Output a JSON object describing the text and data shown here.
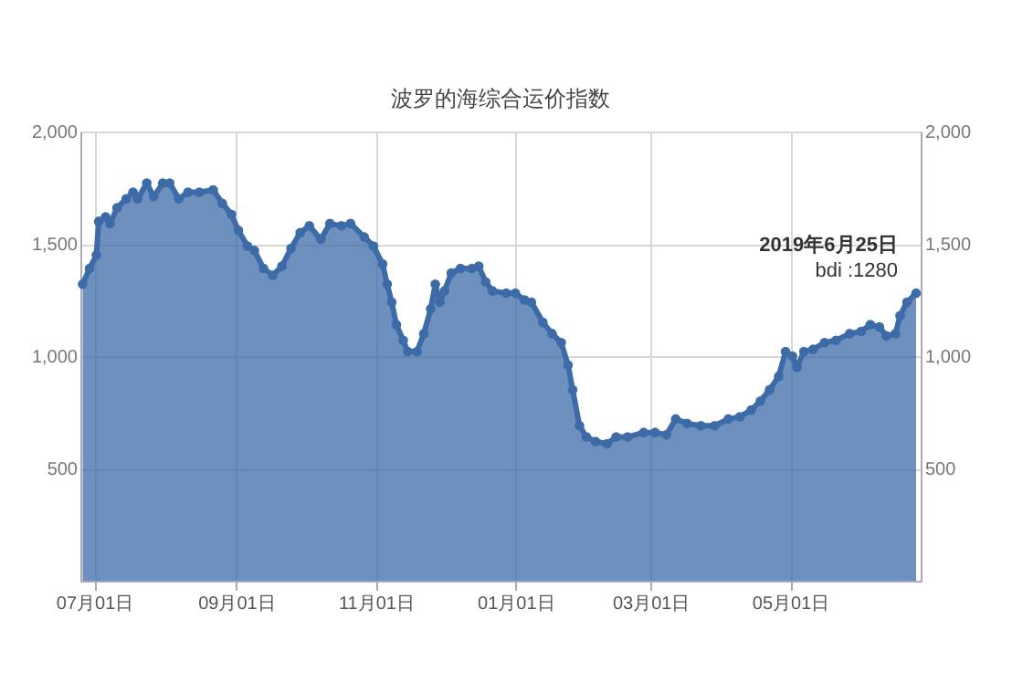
{
  "chart_data": {
    "type": "area",
    "title": "波罗的海综合运价指数",
    "x": [
      "2018-06-26",
      "2018-06-29",
      "2018-07-02",
      "2018-07-03",
      "2018-07-06",
      "2018-07-08",
      "2018-07-11",
      "2018-07-15",
      "2018-07-18",
      "2018-07-20",
      "2018-07-24",
      "2018-07-27",
      "2018-07-31",
      "2018-08-03",
      "2018-08-07",
      "2018-08-11",
      "2018-08-16",
      "2018-08-22",
      "2018-08-26",
      "2018-08-30",
      "2018-09-02",
      "2018-09-06",
      "2018-09-09",
      "2018-09-13",
      "2018-09-17",
      "2018-09-21",
      "2018-09-25",
      "2018-09-29",
      "2018-10-03",
      "2018-10-08",
      "2018-10-12",
      "2018-10-17",
      "2018-10-21",
      "2018-10-27",
      "2018-10-31",
      "2018-11-04",
      "2018-11-06",
      "2018-11-08",
      "2018-11-10",
      "2018-11-13",
      "2018-11-15",
      "2018-11-19",
      "2018-11-22",
      "2018-11-25",
      "2018-11-27",
      "2018-11-29",
      "2018-12-01",
      "2018-12-04",
      "2018-12-08",
      "2018-12-13",
      "2018-12-16",
      "2018-12-19",
      "2018-12-22",
      "2018-12-28",
      "2019-01-01",
      "2019-01-05",
      "2019-01-08",
      "2019-01-13",
      "2019-01-17",
      "2019-01-21",
      "2019-01-24",
      "2019-01-26",
      "2019-01-29",
      "2019-02-01",
      "2019-02-05",
      "2019-02-10",
      "2019-02-14",
      "2019-02-19",
      "2019-02-26",
      "2019-03-03",
      "2019-03-08",
      "2019-03-12",
      "2019-03-17",
      "2019-03-23",
      "2019-03-29",
      "2019-04-04",
      "2019-04-09",
      "2019-04-14",
      "2019-04-18",
      "2019-04-22",
      "2019-04-26",
      "2019-04-29",
      "2019-05-02",
      "2019-05-04",
      "2019-05-07",
      "2019-05-11",
      "2019-05-16",
      "2019-05-21",
      "2019-05-27",
      "2019-06-01",
      "2019-06-05",
      "2019-06-09",
      "2019-06-12",
      "2019-06-16",
      "2019-06-18",
      "2019-06-21",
      "2019-06-25"
    ],
    "series": [
      {
        "color": "#3d6ba8",
        "values": [
          1320,
          1390,
          1450,
          1600,
          1620,
          1590,
          1660,
          1700,
          1730,
          1700,
          1770,
          1710,
          1770,
          1770,
          1700,
          1730,
          1730,
          1740,
          1680,
          1630,
          1560,
          1490,
          1470,
          1390,
          1360,
          1400,
          1480,
          1550,
          1580,
          1520,
          1590,
          1580,
          1590,
          1530,
          1490,
          1410,
          1320,
          1240,
          1140,
          1070,
          1020,
          1020,
          1100,
          1210,
          1320,
          1240,
          1290,
          1370,
          1390,
          1390,
          1400,
          1330,
          1290,
          1280,
          1280,
          1250,
          1240,
          1150,
          1100,
          1060,
          960,
          850,
          690,
          640,
          620,
          610,
          640,
          640,
          660,
          660,
          650,
          720,
          700,
          690,
          690,
          720,
          730,
          760,
          800,
          850,
          910,
          1020,
          1000,
          950,
          1020,
          1030,
          1060,
          1070,
          1100,
          1110,
          1140,
          1130,
          1090,
          1100,
          1180,
          1240,
          1280
        ]
      }
    ],
    "xlim": [
      "2018-06-25",
      "2019-06-27"
    ],
    "xticks": [
      {
        "value": "2018-07-01",
        "label": "07月01日"
      },
      {
        "value": "2018-09-01",
        "label": "09月01日"
      },
      {
        "value": "2018-11-01",
        "label": "11月01日"
      },
      {
        "value": "2019-01-01",
        "label": "01月01日"
      },
      {
        "value": "2019-03-01",
        "label": "03月01日"
      },
      {
        "value": "2019-05-01",
        "label": "05月01日"
      }
    ],
    "ylim": [
      0,
      2000
    ],
    "yticks": [
      500,
      {
        "value": 1000,
        "label": "1,000"
      },
      {
        "value": 1500,
        "label": "1,500"
      },
      {
        "value": 2000,
        "label": "2,000"
      }
    ],
    "y2lim": [
      0,
      2000
    ],
    "y2ticks": [
      500,
      {
        "value": 1000,
        "label": "1,000"
      },
      {
        "value": 1500,
        "label": "1,500"
      },
      {
        "value": 2000,
        "label": "2,000"
      }
    ],
    "grid": true,
    "marker": "circle",
    "annotations": [
      {
        "text": "2019年6月25日",
        "x": "2019-06-25",
        "y": 1280
      },
      {
        "text": "bdi :1280",
        "x": "2019-06-25",
        "y": 1280
      }
    ]
  }
}
